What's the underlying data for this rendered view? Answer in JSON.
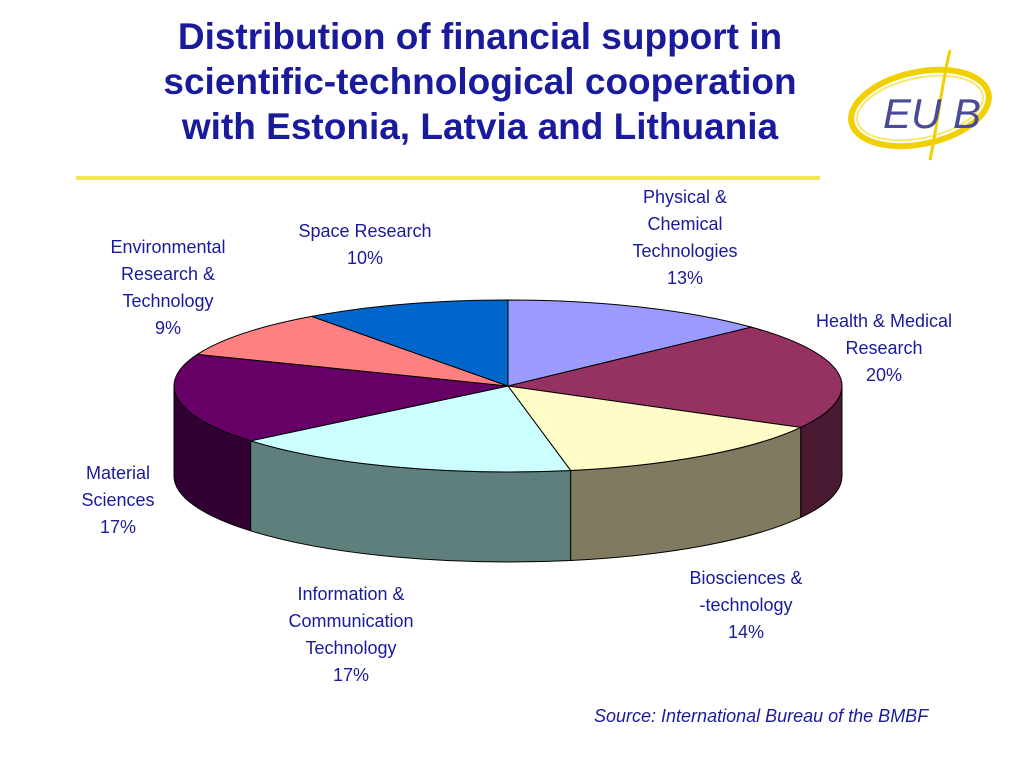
{
  "page": {
    "title_lines": [
      "Distribution of financial support in",
      "scientific-technological cooperation",
      "with Estonia, Latvia and Lithuania"
    ],
    "source": "Source: International Bureau of the BMBF",
    "logo_text": "EU B"
  },
  "chart_data": {
    "type": "pie",
    "title": "",
    "style": "3d-exploded-cylinder",
    "slices": [
      {
        "label_lines": [
          "Physical &",
          "Chemical",
          "Technologies"
        ],
        "value": 13,
        "value_label": "13%",
        "color": "#9b9bff",
        "side_color": "#5a5a9a"
      },
      {
        "label_lines": [
          "Health & Medical",
          "Research"
        ],
        "value": 20,
        "value_label": "20%",
        "color": "#963262",
        "side_color": "#4a1a32"
      },
      {
        "label_lines": [
          "Biosciences &",
          "-technology"
        ],
        "value": 14,
        "value_label": "14%",
        "color": "#fffcc8",
        "side_color": "#7f7a60"
      },
      {
        "label_lines": [
          "Information &",
          "Communication",
          "Technology"
        ],
        "value": 17,
        "value_label": "17%",
        "color": "#ccffff",
        "side_color": "#5f7f7c"
      },
      {
        "label_lines": [
          "Material",
          "Sciences"
        ],
        "value": 17,
        "value_label": "17%",
        "color": "#660066",
        "side_color": "#330033"
      },
      {
        "label_lines": [
          "Environmental",
          "Research &",
          "Technology"
        ],
        "value": 9,
        "value_label": "9%",
        "color": "#ff8080",
        "side_color": "#7f4040"
      },
      {
        "label_lines": [
          "Space Research"
        ],
        "value": 10,
        "value_label": "10%",
        "color": "#0066cc",
        "side_color": "#003366"
      }
    ],
    "legend": "none"
  }
}
